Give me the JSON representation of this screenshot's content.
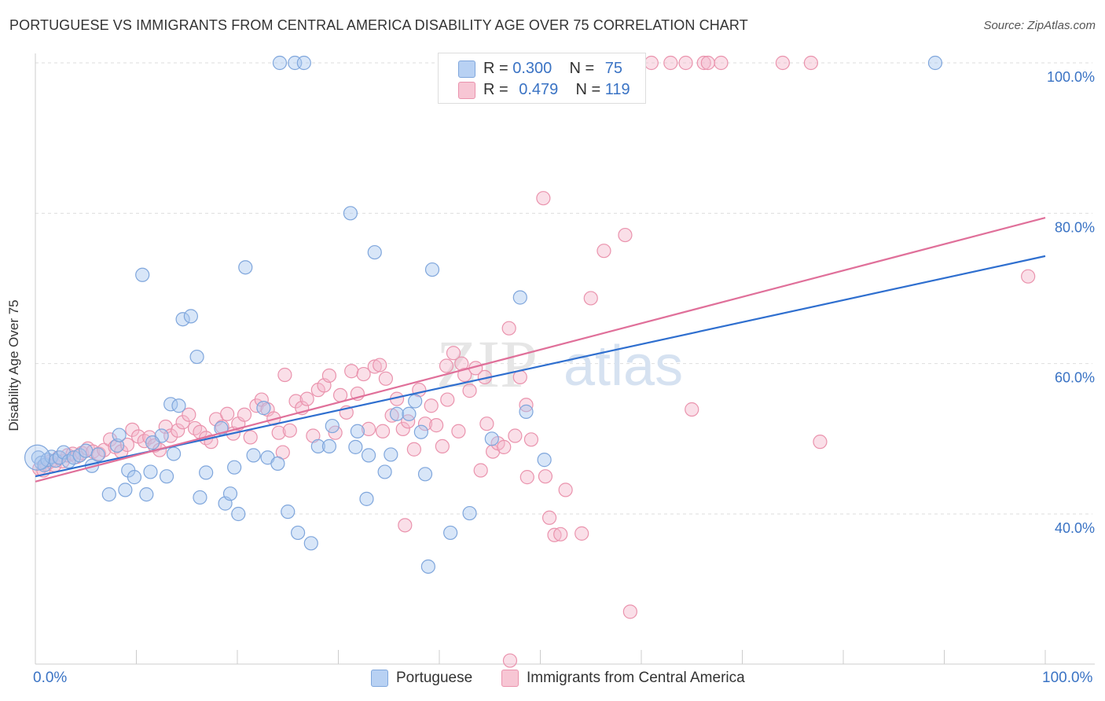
{
  "header": {
    "title": "PORTUGUESE VS IMMIGRANTS FROM CENTRAL AMERICA DISABILITY AGE OVER 75 CORRELATION CHART",
    "source": "Source: ZipAtlas.com"
  },
  "watermark": {
    "zip": "ZIP",
    "atlas": "atlas"
  },
  "legend": {
    "r_label": "R =",
    "n_label": "N =",
    "items": [
      {
        "r": "0.300",
        "n": "75"
      },
      {
        "r": "0.479",
        "n": "119"
      }
    ]
  },
  "bottom_legend": [
    "Portuguese",
    "Immigrants from Central America"
  ],
  "axes": {
    "x_min_label": "0.0%",
    "x_max_label": "100.0%"
  },
  "colors": {
    "blue_fill": "#a9c7ef",
    "blue_stroke": "#7fa6dc",
    "blue_line": "#2f6fcf",
    "pink_fill": "#f5b8cb",
    "pink_stroke": "#ea93ad",
    "pink_line": "#e0709a",
    "grid": "#dddddd",
    "tick_text": "#3a73c4"
  },
  "chart_data": {
    "type": "scatter",
    "title": "PORTUGUESE VS IMMIGRANTS FROM CENTRAL AMERICA DISABILITY AGE OVER 75 CORRELATION CHART",
    "xlabel": "",
    "ylabel": "Disability Age Over 75",
    "xlim": [
      0,
      100
    ],
    "ylim": [
      20,
      102
    ],
    "y_ticks": [
      40,
      60,
      80,
      100
    ],
    "y_tick_labels": [
      "40.0%",
      "60.0%",
      "80.0%",
      "100.0%"
    ],
    "x_tick_labels": [
      "0.0%",
      "100.0%"
    ],
    "grid": true,
    "legend_position": "top-center",
    "series": [
      {
        "name": "Portuguese",
        "r": 0.3,
        "n": 75,
        "trend": {
          "x": [
            0,
            100
          ],
          "y": [
            45.0,
            74.3
          ]
        },
        "points": [
          [
            0.3,
            47.5
          ],
          [
            0.6,
            46.8
          ],
          [
            0.9,
            46.5
          ],
          [
            1.2,
            47.2
          ],
          [
            1.6,
            47.6
          ],
          [
            2.0,
            47.1
          ],
          [
            2.4,
            47.5
          ],
          [
            2.8,
            48.2
          ],
          [
            3.3,
            47.0
          ],
          [
            3.8,
            47.5
          ],
          [
            4.4,
            47.8
          ],
          [
            5.0,
            48.4
          ],
          [
            5.6,
            46.4
          ],
          [
            6.2,
            47.9
          ],
          [
            7.3,
            42.6
          ],
          [
            8.1,
            49.1
          ],
          [
            8.3,
            50.5
          ],
          [
            8.9,
            43.2
          ],
          [
            9.2,
            45.8
          ],
          [
            9.8,
            44.9
          ],
          [
            10.6,
            71.8
          ],
          [
            11.0,
            42.6
          ],
          [
            11.4,
            45.6
          ],
          [
            12.5,
            50.4
          ],
          [
            13.0,
            45.0
          ],
          [
            13.7,
            48.0
          ],
          [
            13.4,
            54.6
          ],
          [
            14.2,
            54.4
          ],
          [
            14.6,
            65.9
          ],
          [
            15.4,
            66.3
          ],
          [
            16.0,
            60.9
          ],
          [
            16.3,
            42.2
          ],
          [
            16.9,
            45.5
          ],
          [
            18.4,
            51.4
          ],
          [
            18.8,
            41.4
          ],
          [
            19.3,
            42.7
          ],
          [
            19.7,
            46.2
          ],
          [
            20.1,
            40.0
          ],
          [
            20.8,
            72.8
          ],
          [
            21.6,
            47.8
          ],
          [
            22.6,
            54.1
          ],
          [
            23.0,
            47.5
          ],
          [
            24.0,
            46.7
          ],
          [
            25.0,
            40.3
          ],
          [
            26.0,
            37.5
          ],
          [
            27.3,
            36.1
          ],
          [
            28.0,
            49.0
          ],
          [
            29.1,
            49.0
          ],
          [
            29.4,
            51.7
          ],
          [
            31.2,
            80.0
          ],
          [
            31.7,
            48.9
          ],
          [
            31.9,
            51.0
          ],
          [
            32.8,
            42.0
          ],
          [
            33.0,
            47.8
          ],
          [
            33.6,
            74.8
          ],
          [
            34.6,
            45.6
          ],
          [
            35.2,
            47.9
          ],
          [
            35.8,
            53.3
          ],
          [
            37.0,
            53.3
          ],
          [
            37.6,
            55.0
          ],
          [
            38.2,
            50.9
          ],
          [
            38.6,
            45.3
          ],
          [
            38.9,
            33.0
          ],
          [
            39.3,
            72.5
          ],
          [
            41.1,
            37.5
          ],
          [
            43.0,
            40.1
          ],
          [
            45.2,
            50.0
          ],
          [
            48.0,
            68.8
          ],
          [
            48.6,
            53.6
          ],
          [
            50.4,
            47.2
          ],
          [
            24.2,
            100.0
          ],
          [
            25.7,
            100.0
          ],
          [
            26.6,
            100.0
          ],
          [
            89.1,
            100.0
          ],
          [
            11.6,
            49.5
          ]
        ]
      },
      {
        "name": "Immigrants from Central America",
        "r": 0.479,
        "n": 119,
        "trend": {
          "x": [
            0,
            100
          ],
          "y": [
            44.3,
            79.4
          ]
        },
        "points": [
          [
            0.4,
            46.0
          ],
          [
            0.8,
            45.8
          ],
          [
            1.1,
            46.6
          ],
          [
            1.5,
            47.0
          ],
          [
            1.9,
            46.5
          ],
          [
            2.3,
            47.5
          ],
          [
            2.7,
            47.0
          ],
          [
            3.2,
            47.8
          ],
          [
            3.7,
            48.0
          ],
          [
            4.1,
            47.6
          ],
          [
            4.6,
            48.1
          ],
          [
            5.2,
            48.7
          ],
          [
            5.7,
            48.3
          ],
          [
            6.3,
            48.0
          ],
          [
            6.8,
            48.5
          ],
          [
            7.4,
            49.9
          ],
          [
            7.9,
            48.9
          ],
          [
            8.5,
            48.3
          ],
          [
            9.1,
            49.2
          ],
          [
            9.6,
            51.2
          ],
          [
            10.2,
            50.3
          ],
          [
            10.8,
            49.7
          ],
          [
            11.3,
            50.2
          ],
          [
            11.8,
            49.1
          ],
          [
            12.3,
            48.5
          ],
          [
            12.9,
            51.6
          ],
          [
            13.4,
            50.4
          ],
          [
            14.1,
            51.1
          ],
          [
            14.6,
            52.2
          ],
          [
            15.2,
            53.2
          ],
          [
            15.8,
            51.4
          ],
          [
            16.3,
            50.9
          ],
          [
            16.9,
            50.1
          ],
          [
            17.4,
            49.6
          ],
          [
            17.9,
            52.6
          ],
          [
            18.5,
            51.6
          ],
          [
            19.0,
            53.3
          ],
          [
            19.6,
            50.7
          ],
          [
            20.1,
            52.0
          ],
          [
            20.7,
            53.2
          ],
          [
            21.3,
            50.2
          ],
          [
            21.9,
            54.4
          ],
          [
            22.4,
            55.2
          ],
          [
            23.0,
            53.9
          ],
          [
            23.6,
            52.7
          ],
          [
            24.1,
            50.8
          ],
          [
            24.7,
            58.5
          ],
          [
            25.2,
            51.1
          ],
          [
            25.8,
            55.0
          ],
          [
            26.4,
            54.1
          ],
          [
            26.9,
            55.3
          ],
          [
            27.5,
            50.4
          ],
          [
            28.0,
            56.5
          ],
          [
            28.6,
            57.1
          ],
          [
            29.1,
            58.4
          ],
          [
            29.7,
            50.8
          ],
          [
            30.2,
            55.8
          ],
          [
            30.8,
            53.5
          ],
          [
            31.3,
            59.0
          ],
          [
            31.9,
            56.0
          ],
          [
            32.5,
            58.6
          ],
          [
            33.0,
            51.3
          ],
          [
            33.6,
            59.6
          ],
          [
            34.1,
            59.8
          ],
          [
            34.7,
            58.0
          ],
          [
            35.3,
            53.1
          ],
          [
            35.8,
            55.3
          ],
          [
            36.4,
            51.3
          ],
          [
            36.9,
            52.3
          ],
          [
            37.5,
            48.6
          ],
          [
            38.0,
            56.5
          ],
          [
            38.6,
            52.0
          ],
          [
            39.2,
            54.4
          ],
          [
            39.7,
            51.8
          ],
          [
            40.3,
            49.0
          ],
          [
            40.8,
            55.2
          ],
          [
            41.4,
            61.4
          ],
          [
            41.9,
            51.0
          ],
          [
            42.5,
            58.5
          ],
          [
            43.0,
            56.4
          ],
          [
            43.6,
            59.4
          ],
          [
            44.1,
            45.8
          ],
          [
            44.7,
            52.0
          ],
          [
            45.3,
            48.3
          ],
          [
            45.8,
            49.4
          ],
          [
            46.4,
            48.9
          ],
          [
            46.9,
            64.7
          ],
          [
            47.5,
            50.4
          ],
          [
            48.0,
            58.2
          ],
          [
            48.6,
            54.5
          ],
          [
            49.1,
            49.9
          ],
          [
            50.3,
            82.0
          ],
          [
            50.9,
            39.5
          ],
          [
            51.4,
            37.2
          ],
          [
            52.0,
            37.3
          ],
          [
            52.5,
            43.2
          ],
          [
            54.1,
            37.4
          ],
          [
            55.0,
            68.7
          ],
          [
            56.3,
            75.0
          ],
          [
            58.4,
            77.1
          ],
          [
            58.9,
            27.0
          ],
          [
            61.0,
            100.0
          ],
          [
            62.9,
            100.0
          ],
          [
            64.4,
            100.0
          ],
          [
            65.0,
            53.9
          ],
          [
            66.2,
            100.0
          ],
          [
            66.6,
            100.0
          ],
          [
            67.9,
            100.0
          ],
          [
            74.0,
            100.0
          ],
          [
            76.8,
            100.0
          ],
          [
            77.7,
            49.6
          ],
          [
            98.3,
            71.6
          ],
          [
            50.5,
            45.0
          ],
          [
            48.7,
            44.9
          ],
          [
            47.0,
            20.5
          ],
          [
            36.6,
            38.5
          ],
          [
            24.5,
            48.2
          ],
          [
            44.5,
            58.2
          ],
          [
            34.4,
            51.0
          ],
          [
            42.2,
            60.0
          ],
          [
            40.7,
            59.7
          ]
        ]
      }
    ]
  }
}
